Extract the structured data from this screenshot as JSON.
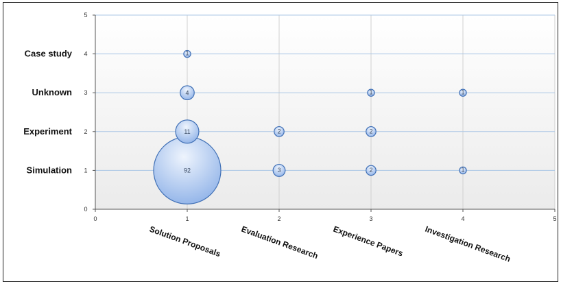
{
  "chart_data": {
    "type": "bubble",
    "x_ticks": [
      "0",
      "1",
      "2",
      "3",
      "4",
      "5"
    ],
    "y_ticks": [
      "0",
      "1",
      "2",
      "3",
      "4",
      "5"
    ],
    "xlim": [
      0,
      5
    ],
    "ylim": [
      0,
      5
    ],
    "grid": true,
    "x_categories": [
      {
        "x": 1,
        "label": "Solution Proposals"
      },
      {
        "x": 2,
        "label": "Evaluation Research"
      },
      {
        "x": 3,
        "label": "Experience Papers"
      },
      {
        "x": 4,
        "label": "Investigation Research"
      }
    ],
    "y_categories": [
      {
        "y": 1,
        "label": "Simulation"
      },
      {
        "y": 2,
        "label": "Experiment"
      },
      {
        "y": 3,
        "label": "Unknown"
      },
      {
        "y": 4,
        "label": "Case study"
      }
    ],
    "points": [
      {
        "x": 1,
        "y": 4,
        "value": 1,
        "label": "1"
      },
      {
        "x": 1,
        "y": 3,
        "value": 4,
        "label": "4"
      },
      {
        "x": 3,
        "y": 3,
        "value": 1,
        "label": "1"
      },
      {
        "x": 4,
        "y": 3,
        "value": 1,
        "label": "1"
      },
      {
        "x": 1,
        "y": 2,
        "value": 11,
        "label": "11"
      },
      {
        "x": 2,
        "y": 2,
        "value": 2,
        "label": "2"
      },
      {
        "x": 3,
        "y": 2,
        "value": 2,
        "label": "2"
      },
      {
        "x": 1,
        "y": 1,
        "value": 92,
        "label": "92"
      },
      {
        "x": 2,
        "y": 1,
        "value": 3,
        "label": "3"
      },
      {
        "x": 3,
        "y": 1,
        "value": 2,
        "label": "2"
      },
      {
        "x": 4,
        "y": 1,
        "value": 1,
        "label": "1"
      }
    ],
    "colors": {
      "bubble_fill_top": "#eef4fd",
      "bubble_fill_bottom": "#8fb2e8",
      "bubble_stroke": "#3f6fb5",
      "grid": "#a9c6e6",
      "plot_bg_top": "#ffffff",
      "plot_bg_bottom": "#ebebeb"
    }
  }
}
